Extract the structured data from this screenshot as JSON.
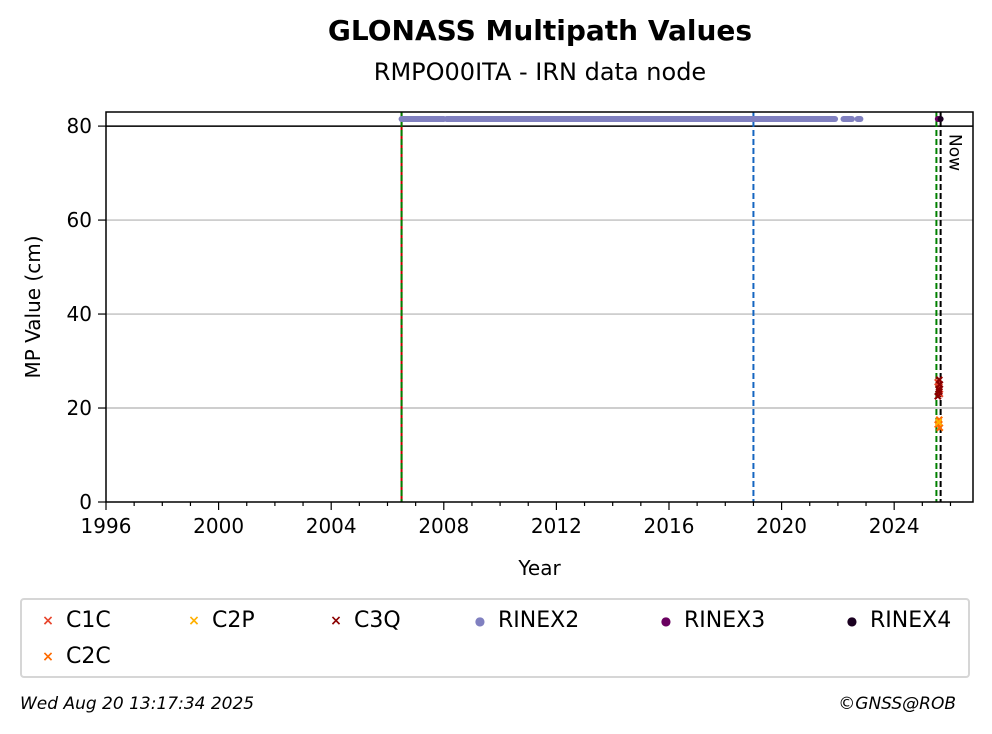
{
  "chart_data": {
    "type": "scatter",
    "title": "GLONASS Multipath Values",
    "subtitle": "RMPO00ITA - IRN data node",
    "xlabel": "Year",
    "ylabel": "MP Value (cm)",
    "xlim": [
      1996,
      2026.8
    ],
    "ylim": [
      0,
      83
    ],
    "x_ticks": [
      "1996",
      "2000",
      "2004",
      "2008",
      "2012",
      "2016",
      "2020",
      "2024"
    ],
    "y_ticks": [
      "0",
      "20",
      "40",
      "60",
      "80"
    ],
    "grid": "horizontal",
    "reference_line_y": 80,
    "vertical_lines": [
      {
        "x": 2006.5,
        "color": "#c00000",
        "style": "solid"
      },
      {
        "x": 2006.5,
        "color": "#008000",
        "style": "dashed"
      },
      {
        "x": 2019.0,
        "color": "#1565c0",
        "style": "dashed"
      },
      {
        "x": 2025.5,
        "color": "#008000",
        "style": "dashed"
      },
      {
        "x": 2025.65,
        "color": "#000000",
        "style": "dashed",
        "label": "Now"
      }
    ],
    "series": [
      {
        "name": "C1C",
        "marker": "x",
        "color": "#e8452c",
        "points": [
          [
            2025.55,
            25.5
          ],
          [
            2025.6,
            24.5
          ],
          [
            2025.62,
            23.0
          ]
        ]
      },
      {
        "name": "C2C",
        "marker": "x",
        "color": "#ff6a00",
        "points": [
          [
            2025.55,
            16.5
          ],
          [
            2025.6,
            17.5
          ],
          [
            2025.62,
            15.8
          ]
        ]
      },
      {
        "name": "C2P",
        "marker": "x",
        "color": "#ffb000",
        "points": [
          [
            2025.58,
            17.0
          ]
        ]
      },
      {
        "name": "C3Q",
        "marker": "x",
        "color": "#8b0000",
        "points": [
          [
            2025.55,
            22.5
          ],
          [
            2025.58,
            24.0
          ],
          [
            2025.6,
            26.0
          ],
          [
            2025.62,
            25.0
          ],
          [
            2025.6,
            23.5
          ]
        ]
      },
      {
        "name": "RINEX2",
        "marker": "o",
        "color": "#8080c0",
        "y": 81.5,
        "ranges": [
          [
            2006.5,
            2008.0
          ],
          [
            2008.1,
            2021.9
          ],
          [
            2022.2,
            2022.5
          ],
          [
            2022.7,
            2022.8
          ]
        ]
      },
      {
        "name": "RINEX3",
        "marker": "o",
        "color": "#6a0060",
        "points": [
          [
            2025.55,
            81.5
          ],
          [
            2025.6,
            81.5
          ]
        ]
      },
      {
        "name": "RINEX4",
        "marker": "o",
        "color": "#1a0020",
        "points": [
          [
            2025.65,
            81.5
          ]
        ]
      }
    ],
    "legend_placement": "bottom"
  },
  "legend": [
    {
      "label": "C1C",
      "glyph": "×",
      "color": "#e8452c"
    },
    {
      "label": "C2P",
      "glyph": "×",
      "color": "#ffb000"
    },
    {
      "label": "C3Q",
      "glyph": "×",
      "color": "#8b0000"
    },
    {
      "label": "RINEX2",
      "glyph": "●",
      "color": "#8080c0"
    },
    {
      "label": "RINEX3",
      "glyph": "●",
      "color": "#6a0060"
    },
    {
      "label": "RINEX4",
      "glyph": "●",
      "color": "#1a0020"
    },
    {
      "label": "C2C",
      "glyph": "×",
      "color": "#ff6a00"
    }
  ],
  "now_label": "Now",
  "footer": {
    "timestamp": "Wed Aug 20 13:17:34 2025",
    "credit": "©GNSS@ROB"
  }
}
